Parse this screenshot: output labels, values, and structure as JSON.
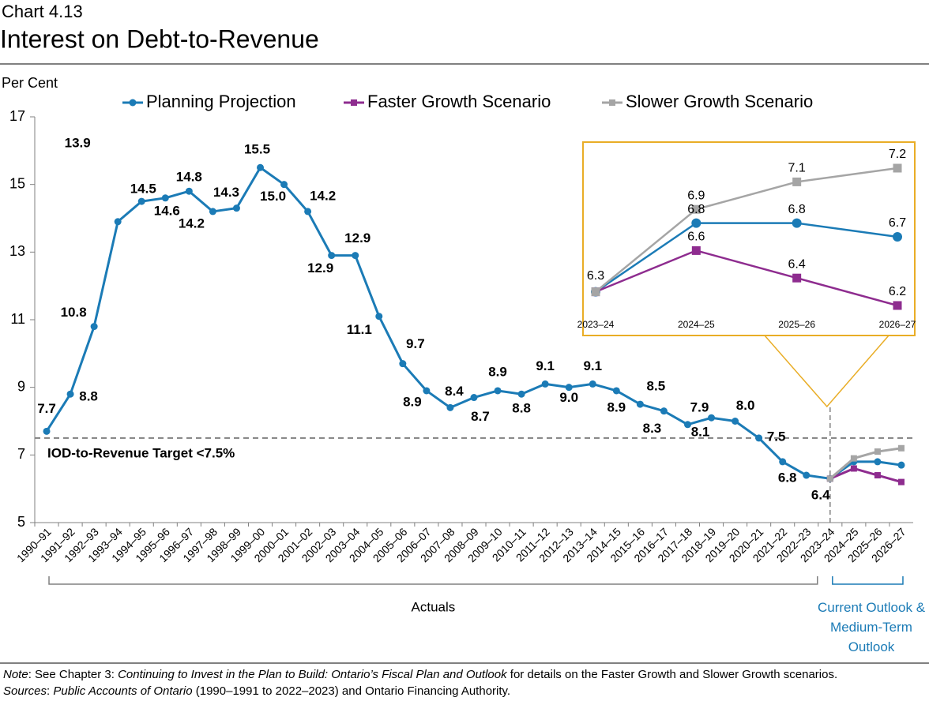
{
  "header": {
    "label": "Chart 4.13",
    "title": "Interest on Debt-to-Revenue"
  },
  "chart_data": {
    "type": "line",
    "y_axis_label": "Per Cent",
    "ylim": [
      5,
      17
    ],
    "yticks": [
      5,
      7,
      9,
      11,
      13,
      15,
      17
    ],
    "grid": false,
    "categories": [
      "1990–91",
      "1991–92",
      "1992–93",
      "1993–94",
      "1994–95",
      "1995–96",
      "1996–97",
      "1997–98",
      "1998–99",
      "1999–00",
      "2000–01",
      "2001–02",
      "2002–03",
      "2003–04",
      "2004–05",
      "2005–06",
      "2006–07",
      "2007–08",
      "2008–09",
      "2009–10",
      "2010–11",
      "2011–12",
      "2012–13",
      "2013–14",
      "2014–15",
      "2015–16",
      "2016–17",
      "2017–18",
      "2018–19",
      "2019–20",
      "2020–21",
      "2021–22",
      "2022–23",
      "2023–24",
      "2024–25",
      "2025–26",
      "2026–27"
    ],
    "series": [
      {
        "name": "Planning Projection",
        "color": "#1b7bb6",
        "marker": "circle",
        "values": [
          7.7,
          8.8,
          10.8,
          13.9,
          14.5,
          14.6,
          14.8,
          14.2,
          14.3,
          15.5,
          15.0,
          14.2,
          12.9,
          12.9,
          11.1,
          9.7,
          8.9,
          8.4,
          8.7,
          8.9,
          8.8,
          9.1,
          9.0,
          9.1,
          8.9,
          8.5,
          8.3,
          7.9,
          8.1,
          8.0,
          7.5,
          6.8,
          6.4,
          6.3,
          6.8,
          6.8,
          6.7
        ],
        "value_labels": [
          "7.7",
          "8.8",
          "10.8",
          "13.9",
          "14.5",
          "14.6",
          "14.8",
          "14.2",
          "14.3",
          "15.5",
          "15.0",
          "14.2",
          "12.9",
          "12.9",
          "11.1",
          "9.7",
          "8.9",
          "8.4",
          "8.7",
          "8.9",
          "8.8",
          "9.1",
          "9.0",
          "9.1",
          "8.9",
          "8.5",
          "8.3",
          "7.9",
          "8.1",
          "8.0",
          "7.5",
          "6.8",
          "6.4",
          "6.3",
          "6.8",
          "6.8",
          "6.7"
        ]
      },
      {
        "name": "Faster Growth Scenario",
        "color": "#8e2c8f",
        "marker": "square",
        "values": [
          null,
          null,
          null,
          null,
          null,
          null,
          null,
          null,
          null,
          null,
          null,
          null,
          null,
          null,
          null,
          null,
          null,
          null,
          null,
          null,
          null,
          null,
          null,
          null,
          null,
          null,
          null,
          null,
          null,
          null,
          null,
          null,
          null,
          6.3,
          6.6,
          6.4,
          6.2
        ],
        "value_labels": [
          null,
          null,
          null,
          null,
          null,
          null,
          null,
          null,
          null,
          null,
          null,
          null,
          null,
          null,
          null,
          null,
          null,
          null,
          null,
          null,
          null,
          null,
          null,
          null,
          null,
          null,
          null,
          null,
          null,
          null,
          null,
          null,
          null,
          null,
          "6.6",
          "6.4",
          "6.2"
        ]
      },
      {
        "name": "Slower Growth Scenario",
        "color": "#a5a5a5",
        "marker": "square",
        "values": [
          null,
          null,
          null,
          null,
          null,
          null,
          null,
          null,
          null,
          null,
          null,
          null,
          null,
          null,
          null,
          null,
          null,
          null,
          null,
          null,
          null,
          null,
          null,
          null,
          null,
          null,
          null,
          null,
          null,
          null,
          null,
          null,
          null,
          6.3,
          6.9,
          7.1,
          7.2
        ],
        "value_labels": [
          null,
          null,
          null,
          null,
          null,
          null,
          null,
          null,
          null,
          null,
          null,
          null,
          null,
          null,
          null,
          null,
          null,
          null,
          null,
          null,
          null,
          null,
          null,
          null,
          null,
          null,
          null,
          null,
          null,
          null,
          null,
          null,
          null,
          null,
          "6.9",
          "7.1",
          "7.2"
        ]
      }
    ],
    "target": 7.5,
    "target_label": "IOD-to-Revenue Target <7.5%",
    "actuals_label": "Actuals",
    "outlook_label": "Current Outlook & Medium-Term Outlook"
  },
  "notes": [
    [
      {
        "text": "Note",
        "italic": true
      },
      {
        "text": ": See Chapter 3: ",
        "italic": false
      },
      {
        "text": "Continuing to Invest in the Plan to Build: Ontario’s Fiscal Plan and Outlook",
        "italic": true
      },
      {
        "text": " for details on the Faster Growth and Slower Growth scenarios.",
        "italic": false
      }
    ],
    [
      {
        "text": "Sources",
        "italic": true
      },
      {
        "text": ": ",
        "italic": false
      },
      {
        "text": "Public Accounts of Ontario",
        "italic": true
      },
      {
        "text": " (1990–1991 to 2022–2023) and Ontario Financing Authority.",
        "italic": false
      }
    ]
  ]
}
